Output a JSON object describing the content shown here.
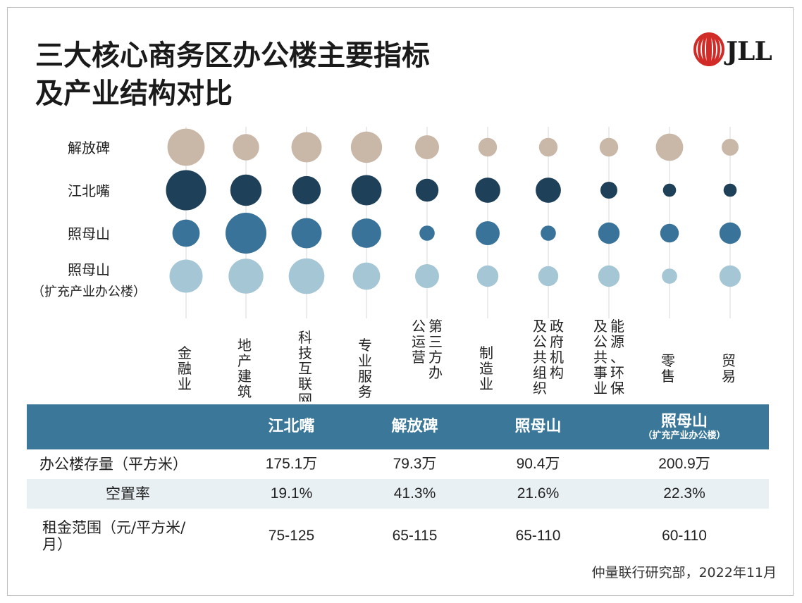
{
  "title_line1": "三大核心商务区办公楼主要指标",
  "title_line2": "及产业结构对比",
  "logo": {
    "text": "JLL",
    "color": "#d02b27"
  },
  "chart_data": {
    "type": "scatter",
    "encoding": "bubble size by relative industry share",
    "rows": [
      "解放碑",
      "江北嘴",
      "照母山",
      "照母山\n（扩充产业办公楼）"
    ],
    "columns": [
      "金融业",
      "地产建筑",
      "科技互联网",
      "专业服务",
      "第三方办公运营",
      "制造业",
      "政府机构及公共组织",
      "能源、环保及公共事业",
      "零售",
      "贸易"
    ],
    "column_lines": [
      [
        "金",
        "融",
        "业"
      ],
      [
        "地",
        "产",
        "建",
        "筑"
      ],
      [
        "科",
        "技",
        "互",
        "联",
        "网"
      ],
      [
        "专",
        "业",
        "服",
        "务"
      ],
      [
        "第三方办",
        "公运营"
      ],
      [
        "制",
        "造",
        "业"
      ],
      [
        "政府机构",
        "及公共组织"
      ],
      [
        "能源、环保",
        "及公共事业"
      ],
      [
        "零",
        "售"
      ],
      [
        "贸",
        "易"
      ]
    ],
    "series": [
      {
        "row": "解放碑",
        "color": "#c9b7a7",
        "values": [
          24,
          12,
          16,
          17,
          10,
          6,
          6,
          6,
          13,
          5
        ]
      },
      {
        "row": "江北嘴",
        "color": "#1e4058",
        "values": [
          28,
          17,
          14,
          16,
          9,
          11,
          11,
          5,
          3,
          3
        ]
      },
      {
        "row": "照母山",
        "color": "#3a7399",
        "values": [
          13,
          29,
          16,
          15,
          4,
          10,
          4,
          8,
          6,
          8
        ]
      },
      {
        "row": "照母山\n（扩充产业办公楼）",
        "color": "#a5c6d4",
        "values": [
          19,
          21,
          22,
          13,
          10,
          8,
          7,
          8,
          4,
          8
        ]
      }
    ]
  },
  "table": {
    "headers": [
      "",
      "江北嘴",
      "解放碑",
      "照母山",
      "照母山"
    ],
    "header_sub": "（扩充产业办公楼）",
    "rows": [
      {
        "label": "办公楼存量（平方米）",
        "values": [
          "175.1万",
          "79.3万",
          "90.4万",
          "200.9万"
        ]
      },
      {
        "label": "空置率",
        "values": [
          "19.1%",
          "41.3%",
          "21.6%",
          "22.3%"
        ]
      },
      {
        "label_line1": "租金范围（元/平方米/",
        "label_line2": "月）",
        "values": [
          "75-125",
          "65-115",
          "65-110",
          "60-110"
        ]
      }
    ],
    "header_color": "#3a7799",
    "alt_row_color": "#e9f0f3"
  },
  "source": "仲量联行研究部，2022年11月"
}
